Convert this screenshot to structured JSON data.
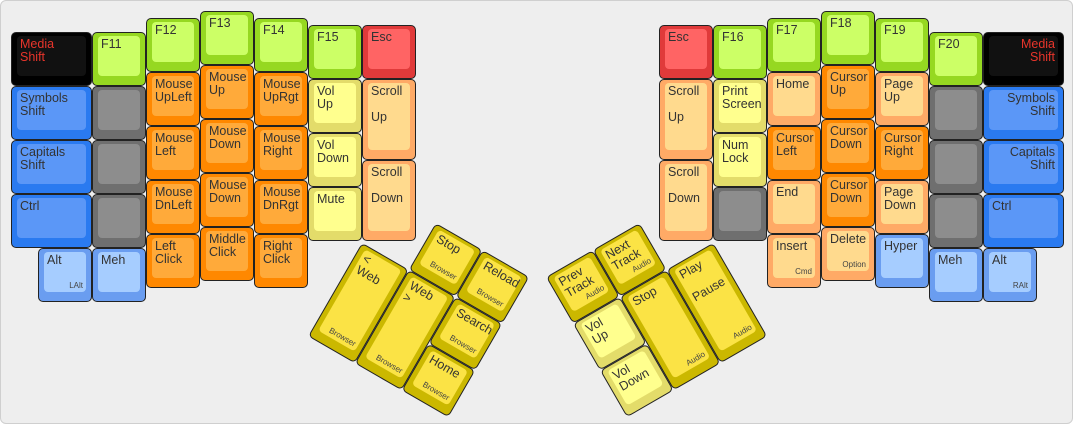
{
  "palette": {
    "black": [
      "#000000",
      "#111111",
      "#e8352b"
    ],
    "blue": [
      "#2a7af0",
      "#5b97f7",
      "#333333"
    ],
    "gray": [
      "#6f6f6f",
      "#8d8d8d",
      "#333333"
    ],
    "green": [
      "#96d821",
      "#ccff66",
      "#333333"
    ],
    "orange": [
      "#ff8800",
      "#ffaa3a",
      "#333333"
    ],
    "peach": [
      "#ffaa66",
      "#ffda8e",
      "#333333"
    ],
    "lightyellow": [
      "#e3dc6a",
      "#ffff8e",
      "#333333"
    ],
    "red": [
      "#e03a3a",
      "#ff6464",
      "#333333"
    ],
    "mustard": [
      "#cbb800",
      "#fbe345",
      "#333333"
    ],
    "lightblue": [
      "#6a9df0",
      "#a6cdff",
      "#333333"
    ]
  },
  "keys": [
    {
      "id": "l-media",
      "label": "Media\nShift",
      "sub": "",
      "color": "black"
    },
    {
      "id": "l-symbols",
      "label": "Symbols\nShift",
      "sub": "",
      "color": "blue"
    },
    {
      "id": "l-capitals",
      "label": "Capitals\nShift",
      "sub": "",
      "color": "blue"
    },
    {
      "id": "l-ctrl",
      "label": "Ctrl",
      "sub": "",
      "color": "blue"
    },
    {
      "id": "l-alt",
      "label": "Alt",
      "sub": "LAlt",
      "color": "lightblue"
    },
    {
      "id": "l-f11",
      "label": "F11",
      "sub": "",
      "color": "green"
    },
    {
      "id": "l-g1",
      "label": "",
      "sub": "",
      "color": "gray"
    },
    {
      "id": "l-g2",
      "label": "",
      "sub": "",
      "color": "gray"
    },
    {
      "id": "l-g3",
      "label": "",
      "sub": "",
      "color": "gray"
    },
    {
      "id": "l-meh",
      "label": "Meh",
      "sub": "",
      "color": "lightblue"
    },
    {
      "id": "l-f12",
      "label": "F12",
      "sub": "",
      "color": "green"
    },
    {
      "id": "l-mul",
      "label": "Mouse\nUpLeft",
      "sub": "",
      "color": "orange"
    },
    {
      "id": "l-ml",
      "label": "Mouse\nLeft",
      "sub": "",
      "color": "orange"
    },
    {
      "id": "l-mdl",
      "label": "Mouse\nDnLeft",
      "sub": "",
      "color": "orange"
    },
    {
      "id": "l-lc",
      "label": "Left\nClick",
      "sub": "",
      "color": "orange"
    },
    {
      "id": "l-f13",
      "label": "F13",
      "sub": "",
      "color": "green"
    },
    {
      "id": "l-mu",
      "label": "Mouse\nUp",
      "sub": "",
      "color": "orange"
    },
    {
      "id": "l-md",
      "label": "Mouse\nDown",
      "sub": "",
      "color": "orange"
    },
    {
      "id": "l-md2",
      "label": "Mouse\nDown",
      "sub": "",
      "color": "orange"
    },
    {
      "id": "l-mc",
      "label": "Middle\nClick",
      "sub": "",
      "color": "orange"
    },
    {
      "id": "l-f14",
      "label": "F14",
      "sub": "",
      "color": "green"
    },
    {
      "id": "l-mur",
      "label": "Mouse\nUpRgt",
      "sub": "",
      "color": "orange"
    },
    {
      "id": "l-mr",
      "label": "Mouse\nRight",
      "sub": "",
      "color": "orange"
    },
    {
      "id": "l-mdr",
      "label": "Mouse\nDnRgt",
      "sub": "",
      "color": "orange"
    },
    {
      "id": "l-rc",
      "label": "Right\nClick",
      "sub": "",
      "color": "orange"
    },
    {
      "id": "l-f15",
      "label": "F15",
      "sub": "",
      "color": "green"
    },
    {
      "id": "l-volup",
      "label": "Vol\nUp",
      "sub": "",
      "color": "lightyellow"
    },
    {
      "id": "l-voldn",
      "label": "Vol\nDown",
      "sub": "",
      "color": "lightyellow"
    },
    {
      "id": "l-mute",
      "label": "Mute",
      "sub": "",
      "color": "lightyellow"
    },
    {
      "id": "l-esc",
      "label": "Esc",
      "sub": "",
      "color": "red"
    },
    {
      "id": "l-scrup",
      "label": "Scroll\n\nUp",
      "sub": "",
      "color": "peach"
    },
    {
      "id": "l-scrdn",
      "label": "Scroll\n\nDown",
      "sub": "",
      "color": "peach"
    },
    {
      "id": "lt-stop",
      "label": "Stop",
      "sub": "Browser",
      "color": "mustard"
    },
    {
      "id": "lt-reload",
      "label": "Reload",
      "sub": "Browser",
      "color": "mustard"
    },
    {
      "id": "lt-back",
      "label": "< Web",
      "sub": "Browser",
      "color": "mustard"
    },
    {
      "id": "lt-fwd",
      "label": "Web >",
      "sub": "Browser",
      "color": "mustard"
    },
    {
      "id": "lt-search",
      "label": "Search",
      "sub": "Browser",
      "color": "mustard"
    },
    {
      "id": "lt-home",
      "label": "Home",
      "sub": "Browser",
      "color": "mustard"
    },
    {
      "id": "r-esc",
      "label": "Esc",
      "sub": "",
      "color": "red"
    },
    {
      "id": "r-scrup",
      "label": "Scroll\n\nUp",
      "sub": "",
      "color": "peach"
    },
    {
      "id": "r-scrdn",
      "label": "Scroll\n\nDown",
      "sub": "",
      "color": "peach"
    },
    {
      "id": "r-f16",
      "label": "F16",
      "sub": "",
      "color": "green"
    },
    {
      "id": "r-prt",
      "label": "Print\nScreen",
      "sub": "",
      "color": "lightyellow"
    },
    {
      "id": "r-num",
      "label": "Num\nLock",
      "sub": "",
      "color": "lightyellow"
    },
    {
      "id": "r-g0",
      "label": "",
      "sub": "",
      "color": "gray"
    },
    {
      "id": "r-f17",
      "label": "F17",
      "sub": "",
      "color": "green"
    },
    {
      "id": "r-home",
      "label": "Home",
      "sub": "",
      "color": "peach"
    },
    {
      "id": "r-cl",
      "label": "Cursor\nLeft",
      "sub": "",
      "color": "orange"
    },
    {
      "id": "r-end",
      "label": "End",
      "sub": "",
      "color": "peach"
    },
    {
      "id": "r-ins",
      "label": "Insert",
      "sub": "Cmd",
      "color": "peach"
    },
    {
      "id": "r-f18",
      "label": "F18",
      "sub": "",
      "color": "green"
    },
    {
      "id": "r-cu",
      "label": "Cursor\nUp",
      "sub": "",
      "color": "orange"
    },
    {
      "id": "r-cd",
      "label": "Cursor\nDown",
      "sub": "",
      "color": "orange"
    },
    {
      "id": "r-cd2",
      "label": "Cursor\nDown",
      "sub": "",
      "color": "orange"
    },
    {
      "id": "r-del",
      "label": "Delete",
      "sub": "Option",
      "color": "peach"
    },
    {
      "id": "r-f19",
      "label": "F19",
      "sub": "",
      "color": "green"
    },
    {
      "id": "r-pgup",
      "label": "Page\nUp",
      "sub": "",
      "color": "peach"
    },
    {
      "id": "r-cr",
      "label": "Cursor\nRight",
      "sub": "",
      "color": "orange"
    },
    {
      "id": "r-pgdn",
      "label": "Page\nDown",
      "sub": "",
      "color": "peach"
    },
    {
      "id": "r-hyper",
      "label": "Hyper",
      "sub": "",
      "color": "lightblue"
    },
    {
      "id": "r-f20",
      "label": "F20",
      "sub": "",
      "color": "green"
    },
    {
      "id": "r-g1",
      "label": "",
      "sub": "",
      "color": "gray"
    },
    {
      "id": "r-g2",
      "label": "",
      "sub": "",
      "color": "gray"
    },
    {
      "id": "r-g3",
      "label": "",
      "sub": "",
      "color": "gray"
    },
    {
      "id": "r-meh",
      "label": "Meh",
      "sub": "",
      "color": "lightblue"
    },
    {
      "id": "r-media",
      "label": "Media\nShift",
      "sub": "",
      "color": "black"
    },
    {
      "id": "r-symbols",
      "label": "Symbols\nShift",
      "sub": "",
      "color": "blue"
    },
    {
      "id": "r-capitals",
      "label": "Capitals\nShift",
      "sub": "",
      "color": "blue"
    },
    {
      "id": "r-ctrl",
      "label": "Ctrl",
      "sub": "",
      "color": "blue"
    },
    {
      "id": "r-alt",
      "label": "Alt",
      "sub": "RAlt",
      "color": "lightblue"
    },
    {
      "id": "rt-prev",
      "label": "Prev\nTrack",
      "sub": "Audio",
      "color": "mustard"
    },
    {
      "id": "rt-next",
      "label": "Next\nTrack",
      "sub": "Audio",
      "color": "mustard"
    },
    {
      "id": "rt-volup",
      "label": "Vol\nUp",
      "sub": "",
      "color": "lightyellow"
    },
    {
      "id": "rt-stop",
      "label": "Stop",
      "sub": "Audio",
      "color": "mustard"
    },
    {
      "id": "rt-play",
      "label": "Play\n\nPause",
      "sub": "Audio",
      "color": "mustard"
    },
    {
      "id": "rt-voldn",
      "label": "Vol\nDown",
      "sub": "",
      "color": "lightyellow"
    }
  ]
}
